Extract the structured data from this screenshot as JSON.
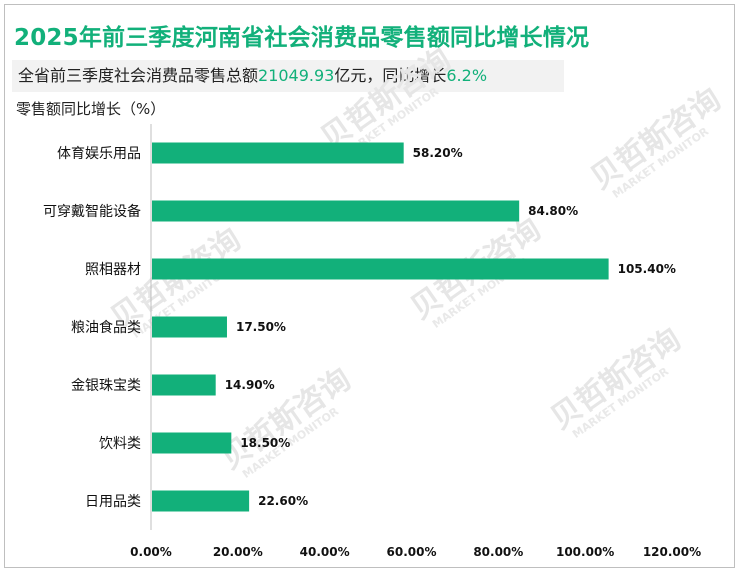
{
  "header": {
    "title": "2025年前三季度河南省社会消费品零售额同比增长情况"
  },
  "summary": {
    "prefix": "全省前三季度社会消费品零售总额",
    "total_value": "21049.93",
    "middle": "亿元，同比增长",
    "growth_value": "6.2%"
  },
  "watermark": {
    "text": "贝哲斯咨询",
    "subtext": "MARKET MONITOR"
  },
  "colors": {
    "accent": "#12b07a",
    "bar": "#12b07a",
    "axis": "#bfbfbf"
  },
  "chart_data": {
    "type": "bar",
    "orientation": "horizontal",
    "title": "2025年前三季度河南省社会消费品零售额同比增长情况",
    "ylabel": "零售额同比增长（%）",
    "xlabel": "",
    "categories": [
      "体育娱乐用品",
      "可穿戴智能设备",
      "照相器材",
      "粮油食品类",
      "金银珠宝类",
      "饮料类",
      "日用品类"
    ],
    "values": [
      58.2,
      84.8,
      105.4,
      17.5,
      14.9,
      18.5,
      22.6
    ],
    "value_labels": [
      "58.20%",
      "84.80%",
      "105.40%",
      "17.50%",
      "14.90%",
      "18.50%",
      "22.60%"
    ],
    "xlim": [
      0,
      120
    ],
    "ticks": [
      0,
      20,
      40,
      60,
      80,
      100,
      120
    ],
    "tick_labels": [
      "0.00%",
      "20.00%",
      "40.00%",
      "60.00%",
      "80.00%",
      "100.00%",
      "120.00%"
    ],
    "grid": false,
    "legend": "none"
  }
}
